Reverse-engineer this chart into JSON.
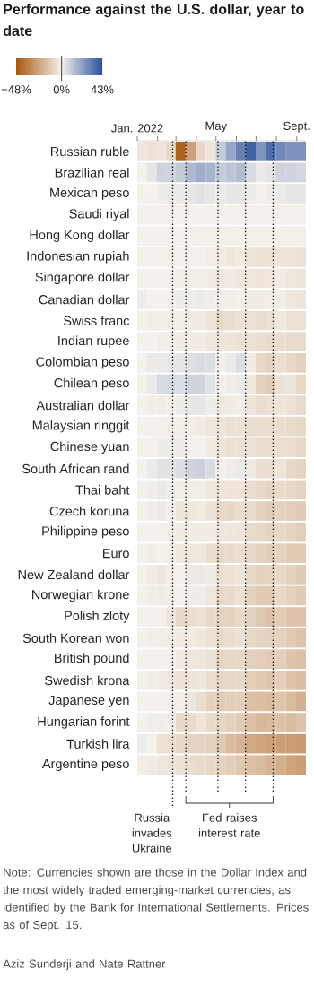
{
  "chart_data": {
    "type": "heatmap",
    "title": "Performance against the U.S. dollar, year to date",
    "x": [
      "2022-01-08",
      "2022-01-23",
      "2022-02-07",
      "2022-02-21",
      "2022-03-08",
      "2022-03-23",
      "2022-04-08",
      "2022-04-23",
      "2022-05-08",
      "2022-05-23",
      "2022-06-08",
      "2022-06-23",
      "2022-07-08",
      "2022-07-23",
      "2022-08-08",
      "2022-08-23",
      "2022-09-08"
    ],
    "xlim": [
      "2022-01-01",
      "2022-09-15"
    ],
    "xticks": [
      {
        "value": "2022-01-01",
        "label": "Jan. 2022"
      },
      {
        "value": "2022-02-01",
        "label": null
      },
      {
        "value": "2022-03-01",
        "label": null
      },
      {
        "value": "2022-04-01",
        "label": null
      },
      {
        "value": "2022-05-01",
        "label": "May"
      },
      {
        "value": "2022-06-01",
        "label": null
      },
      {
        "value": "2022-07-01",
        "label": null
      },
      {
        "value": "2022-08-01",
        "label": null
      },
      {
        "value": "2022-09-01",
        "label": "Sept."
      }
    ],
    "y_categories": [
      "Russian ruble",
      "Brazilian real",
      "Mexican peso",
      "Saudi riyal",
      "Hong Kong dollar",
      "Indonesian rupiah",
      "Singapore dollar",
      "Canadian dollar",
      "Swiss franc",
      "Indian rupee",
      "Colombian peso",
      "Chilean peso",
      "Australian dollar",
      "Malaysian ringgit",
      "Chinese yuan",
      "South African rand",
      "Thai baht",
      "Czech koruna",
      "Philippine peso",
      "Euro",
      "New Zealand dollar",
      "Norwegian krone",
      "Polish zloty",
      "South Korean won",
      "British pound",
      "Swedish krona",
      "Japanese yen",
      "Hungarian forint",
      "Turkish lira",
      "Argentine peso"
    ],
    "cells": [
      [
        -3,
        -5,
        -4,
        -8,
        -45,
        -25,
        -8,
        -3,
        10,
        20,
        30,
        38,
        25,
        35,
        28,
        25,
        25
      ],
      [
        0,
        3,
        8,
        8,
        10,
        15,
        18,
        16,
        10,
        12,
        14,
        6,
        2,
        3,
        8,
        8,
        7
      ],
      [
        0,
        0,
        1,
        2,
        2,
        3,
        4,
        3,
        2,
        3,
        3,
        1,
        0,
        1,
        2,
        3,
        3
      ],
      [
        0,
        0,
        0,
        0,
        0,
        0,
        0,
        0,
        0,
        0,
        0,
        0,
        0,
        0,
        0,
        0,
        0
      ],
      [
        0,
        0,
        0,
        0,
        -0.3,
        -0.4,
        -0.5,
        -0.6,
        -0.7,
        -0.7,
        -0.7,
        -0.7,
        -0.7,
        -0.7,
        -0.7,
        -0.7,
        -0.7
      ],
      [
        0,
        -0.5,
        -0.5,
        -1,
        -0.5,
        -0.5,
        -0.5,
        -1.5,
        -2,
        -3,
        -2,
        -4,
        -5,
        -5,
        -4,
        -4,
        -5
      ],
      [
        0,
        0,
        0,
        0,
        -1,
        -1,
        -1,
        -2,
        -3,
        -2,
        -3,
        -3,
        -4,
        -3,
        -2,
        -3,
        -4
      ],
      [
        1,
        0,
        0,
        0,
        1,
        1,
        2,
        1,
        -1,
        -1,
        0,
        -2,
        -2,
        -1,
        -1,
        -3,
        -4
      ],
      [
        0,
        -1,
        -1,
        -1,
        -1,
        -2,
        -2,
        -4,
        -7,
        -6,
        -5,
        -5,
        -6,
        -5,
        -3,
        -5,
        -5
      ],
      [
        0,
        0,
        -1,
        -1,
        -2,
        -2,
        -2,
        -3,
        -4,
        -4,
        -5,
        -5,
        -6,
        -7,
        -6,
        -7,
        -7
      ],
      [
        0,
        2,
        2,
        3,
        3,
        5,
        6,
        5,
        0,
        2,
        5,
        -2,
        -8,
        -10,
        -6,
        -8,
        -10
      ],
      [
        0,
        2,
        6,
        7,
        5,
        8,
        8,
        4,
        0,
        1,
        2,
        -3,
        -10,
        -12,
        -5,
        -4,
        -8
      ],
      [
        0,
        -1,
        -2,
        0,
        1,
        3,
        3,
        1,
        -3,
        -2,
        -1,
        -4,
        -6,
        -5,
        -4,
        -5,
        -7
      ],
      [
        0,
        -0.5,
        -0.5,
        -1,
        -1,
        -1,
        -2,
        -3,
        -4,
        -5,
        -5,
        -6,
        -6,
        -6,
        -6,
        -7,
        -8
      ],
      [
        0,
        0,
        1,
        1,
        1,
        0,
        0,
        -2,
        -4,
        -5,
        -5,
        -5,
        -6,
        -6,
        -6,
        -6,
        -8
      ],
      [
        0,
        2,
        4,
        4,
        5,
        8,
        9,
        6,
        0,
        1,
        2,
        -2,
        -6,
        -6,
        -4,
        -8,
        -9
      ],
      [
        0,
        1,
        2,
        1,
        -1,
        -1,
        -1,
        -3,
        -4,
        -4,
        -4,
        -6,
        -8,
        -9,
        -7,
        -8,
        -9
      ],
      [
        0,
        1,
        2,
        0,
        -4,
        -3,
        -2,
        -5,
        -8,
        -8,
        -6,
        -7,
        -10,
        -12,
        -10,
        -11,
        -12
      ],
      [
        0,
        0,
        0,
        -1,
        -2,
        -2,
        -2,
        -2,
        -3,
        -3,
        -4,
        -7,
        -8,
        -9,
        -8,
        -9,
        -11
      ],
      [
        0,
        -1,
        0,
        -1,
        -3,
        -3,
        -3,
        -6,
        -8,
        -7,
        -6,
        -8,
        -10,
        -11,
        -10,
        -12,
        -12
      ],
      [
        0,
        -2,
        -3,
        -1,
        0,
        2,
        2,
        -2,
        -6,
        -5,
        -4,
        -8,
        -10,
        -9,
        -8,
        -10,
        -12
      ],
      [
        0,
        -1,
        -2,
        -1,
        0,
        1,
        1,
        -3,
        -8,
        -7,
        -5,
        -10,
        -12,
        -12,
        -8,
        -10,
        -12
      ],
      [
        0,
        0,
        0,
        -3,
        -8,
        -6,
        -5,
        -8,
        -10,
        -10,
        -8,
        -10,
        -13,
        -15,
        -12,
        -14,
        -14
      ],
      [
        0,
        -1,
        -1,
        -1,
        -2,
        -2,
        -3,
        -5,
        -7,
        -6,
        -5,
        -8,
        -9,
        -10,
        -10,
        -12,
        -14
      ],
      [
        0,
        0,
        0,
        0,
        -2,
        -3,
        -3,
        -5,
        -9,
        -8,
        -8,
        -10,
        -11,
        -12,
        -11,
        -14,
        -15
      ],
      [
        0,
        -1,
        -2,
        -3,
        -5,
        -4,
        -3,
        -6,
        -9,
        -8,
        -8,
        -11,
        -13,
        -14,
        -11,
        -14,
        -16
      ],
      [
        0,
        0,
        0,
        0,
        -1,
        -3,
        -6,
        -10,
        -12,
        -11,
        -11,
        -15,
        -16,
        -17,
        -14,
        -17,
        -20
      ],
      [
        0,
        1,
        1,
        -1,
        -8,
        -7,
        -4,
        -7,
        -9,
        -10,
        -12,
        -15,
        -18,
        -17,
        -15,
        -17,
        -14
      ],
      [
        1,
        0,
        -5,
        -6,
        -8,
        -9,
        -9,
        -10,
        -13,
        -17,
        -19,
        -23,
        -24,
        -25,
        -26,
        -26,
        -27
      ],
      [
        -1,
        -2,
        -3,
        -4,
        -5,
        -6,
        -7,
        -8,
        -10,
        -11,
        -13,
        -15,
        -17,
        -19,
        -21,
        -24,
        -26
      ]
    ],
    "clim": [
      -48,
      43
    ],
    "cticks": [
      {
        "value": -48,
        "label": "−48%"
      },
      {
        "value": 0,
        "label": "0%"
      },
      {
        "value": 43,
        "label": "43%"
      }
    ],
    "ref_lines": [
      {
        "axis": "x",
        "value": "2022-02-24",
        "label": "Russia invades Ukraine"
      },
      {
        "axis": "x",
        "value": "2022-03-16",
        "label": "Fed raises interest rate"
      },
      {
        "axis": "x",
        "value": "2022-05-04",
        "label": null
      },
      {
        "axis": "x",
        "value": "2022-06-15",
        "label": null
      },
      {
        "axis": "x",
        "value": "2022-07-27",
        "label": null
      }
    ],
    "annotations": [
      "Note: Currencies shown are those in the Dollar Index and the most widely traded emerging-market currencies, as identified by the Bank for International Settlements. Prices as of Sept. 15.",
      "Aziz Sunderji and Nate Rattner"
    ]
  }
}
